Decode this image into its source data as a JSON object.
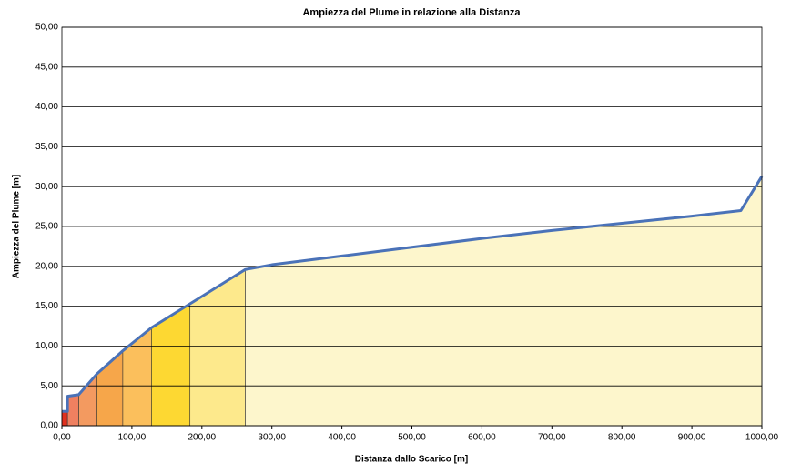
{
  "chart_data": {
    "type": "area",
    "title": "Ampiezza del Plume in relazione alla Distanza",
    "x_label": "Distanza dallo Scarico [m]",
    "y_label": "Ampiezza del Plume [m]",
    "series": [
      {
        "color": "#4a72b8",
        "x": [
          0,
          8,
          8,
          24,
          50,
          87,
          128,
          183,
          262,
          300,
          400,
          500,
          600,
          700,
          800,
          900,
          970,
          1000
        ],
        "values": [
          1.8,
          1.8,
          3.7,
          3.9,
          6.5,
          9.4,
          12.3,
          15.3,
          19.6,
          20.2,
          21.3,
          22.4,
          23.5,
          24.5,
          25.4,
          26.3,
          27.0,
          31.3
        ]
      }
    ],
    "bands": [
      {
        "from": 0,
        "to": 8,
        "color": "#e0301e"
      },
      {
        "from": 8,
        "to": 24,
        "color": "#ef8060"
      },
      {
        "from": 24,
        "to": 50,
        "color": "#f39a60"
      },
      {
        "from": 50,
        "to": 87,
        "color": "#f6a64a"
      },
      {
        "from": 87,
        "to": 128,
        "color": "#fbbf5c"
      },
      {
        "from": 128,
        "to": 183,
        "color": "#fdd832"
      },
      {
        "from": 183,
        "to": 262,
        "color": "#fde98c"
      },
      {
        "from": 262,
        "to": 1000,
        "color": "#fdf6cc"
      }
    ],
    "xlim": [
      0,
      1000
    ],
    "ylim": [
      0,
      50
    ],
    "xticks": [
      {
        "value": 0,
        "label": "0,00"
      },
      {
        "value": 100,
        "label": "100,00"
      },
      {
        "value": 200,
        "label": "200,00"
      },
      {
        "value": 300,
        "label": "300,00"
      },
      {
        "value": 400,
        "label": "400,00"
      },
      {
        "value": 500,
        "label": "500,00"
      },
      {
        "value": 600,
        "label": "600,00"
      },
      {
        "value": 700,
        "label": "700,00"
      },
      {
        "value": 800,
        "label": "800,00"
      },
      {
        "value": 900,
        "label": "900,00"
      },
      {
        "value": 1000,
        "label": "1000,00"
      }
    ],
    "yticks": [
      {
        "value": 0,
        "label": "0,00"
      },
      {
        "value": 5,
        "label": "5,00"
      },
      {
        "value": 10,
        "label": "10,00"
      },
      {
        "value": 15,
        "label": "15,00"
      },
      {
        "value": 20,
        "label": "20,00"
      },
      {
        "value": 25,
        "label": "25,00"
      },
      {
        "value": 30,
        "label": "30,00"
      },
      {
        "value": 35,
        "label": "35,00"
      },
      {
        "value": 40,
        "label": "40,00"
      },
      {
        "value": 45,
        "label": "45,00"
      },
      {
        "value": 50,
        "label": "50,00"
      }
    ],
    "grid": true
  }
}
